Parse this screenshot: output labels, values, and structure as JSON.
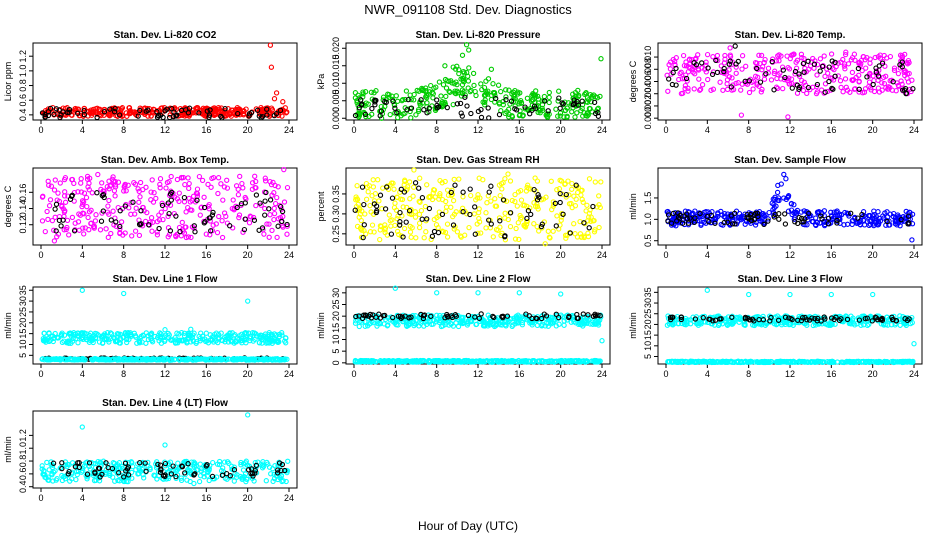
{
  "page": {
    "title": "NWR_091108  Std. Dev. Diagnostics",
    "xlabel": "Hour of Day (UTC)"
  },
  "chart_data": [
    {
      "type": "scatter",
      "title": "Stan. Dev. Li-820 CO2",
      "ylabel": "Licor ppm",
      "xlim": [
        0,
        24
      ],
      "ylim": [
        0.33,
        1.38
      ],
      "xticks": [
        0,
        4,
        8,
        12,
        16,
        20,
        24
      ],
      "yticks": [
        0.4,
        0.6,
        0.8,
        1.0,
        1.2
      ],
      "yticklabels": [
        "0.4",
        "0.6",
        "0.8",
        "1.0",
        "1.2"
      ],
      "series": [
        {
          "color": "#ff0000",
          "values": {
            "band": [
              0.38,
              0.5
            ],
            "spikes": [
              [
                22.2,
                1.35
              ],
              [
                22.3,
                1.05
              ],
              [
                22.6,
                0.62
              ],
              [
                22.8,
                0.7
              ],
              [
                23.4,
                0.58
              ]
            ]
          }
        },
        {
          "color": "#000000",
          "values": {
            "band": [
              0.36,
              0.5
            ]
          }
        }
      ]
    },
    {
      "type": "scatter",
      "title": "Stan. Dev. Li-820 Pressure",
      "ylabel": "kPa",
      "xlim": [
        0,
        24
      ],
      "ylim": [
        -0.0005,
        0.0215
      ],
      "xticks": [
        0,
        4,
        8,
        12,
        16,
        20,
        24
      ],
      "yticks": [
        0.0,
        0.005,
        0.01,
        0.015,
        0.02
      ],
      "yticklabels": [
        "0.000",
        "0.005",
        "0.010",
        "0.015",
        "0.020"
      ],
      "series": [
        {
          "color": "#00cc00",
          "values": {
            "band": [
              0.0,
              0.008
            ],
            "bump": {
              "center": 10.8,
              "width": 2.5,
              "amp": 0.01
            },
            "spikes": [
              [
                10.9,
                0.021
              ],
              [
                11.1,
                0.0195
              ],
              [
                10.5,
                0.018
              ],
              [
                23.9,
                0.017
              ],
              [
                8.8,
                0.015
              ],
              [
                13.3,
                0.014
              ]
            ]
          }
        },
        {
          "color": "#000000",
          "values": {
            "band": [
              0.0,
              0.006
            ]
          }
        }
      ]
    },
    {
      "type": "scatter",
      "title": "Stan. Dev. Li-820 Temp.",
      "ylabel": "degrees C",
      "xlim": [
        0,
        24
      ],
      "ylim": [
        -0.0003,
        0.0123
      ],
      "xticks": [
        0,
        4,
        8,
        12,
        16,
        20,
        24
      ],
      "yticks": [
        0.0,
        0.002,
        0.004,
        0.006,
        0.008,
        0.01
      ],
      "yticklabels": [
        "0.000",
        "0.002",
        "0.004",
        "0.006",
        "0.008",
        "0.010"
      ],
      "series": [
        {
          "color": "#ff00ff",
          "values": {
            "band": [
              0.004,
              0.0105
            ],
            "spikes": [
              [
                6.2,
                0.0115
              ],
              [
                7.3,
                0.0005
              ],
              [
                11.8,
                0.0002
              ],
              [
                17.4,
                0.0108
              ]
            ]
          }
        },
        {
          "color": "#000000",
          "values": {
            "band": [
              0.004,
              0.0095
            ],
            "spikes": [
              [
                6.7,
                0.0118
              ]
            ]
          }
        }
      ]
    },
    {
      "type": "scatter",
      "title": "Stan. Dev. Amb. Box Temp.",
      "ylabel": "degrees C",
      "xlim": [
        0,
        24
      ],
      "ylim": [
        0.095,
        0.19
      ],
      "xticks": [
        0,
        4,
        8,
        12,
        16,
        20,
        24
      ],
      "yticks": [
        0.12,
        0.14,
        0.16
      ],
      "yticklabels": [
        "0.12",
        "0.14",
        "0.16"
      ],
      "series": [
        {
          "color": "#ff00ff",
          "values": {
            "band": [
              0.104,
              0.18
            ],
            "spikes": [
              [
                23.5,
                0.188
              ],
              [
                1.3,
                0.1
              ],
              [
                5.5,
                0.182
              ]
            ]
          }
        },
        {
          "color": "#000000",
          "values": {
            "band": [
              0.11,
              0.16
            ]
          }
        }
      ]
    },
    {
      "type": "scatter",
      "title": "Stan. Dev. Gas Stream RH",
      "ylabel": "percent",
      "xlim": [
        0,
        24
      ],
      "ylim": [
        0.222,
        0.415
      ],
      "xticks": [
        0,
        4,
        8,
        12,
        16,
        20,
        24
      ],
      "yticks": [
        0.25,
        0.3,
        0.35
      ],
      "yticklabels": [
        "0.25",
        "0.30",
        "0.35"
      ],
      "series": [
        {
          "color": "#ffff00",
          "values": {
            "band": [
              0.235,
              0.39
            ],
            "spikes": [
              [
                5.8,
                0.41
              ],
              [
                18.5,
                0.225
              ],
              [
                14.9,
                0.4
              ]
            ]
          }
        },
        {
          "color": "#000000",
          "values": {
            "band": [
              0.24,
              0.38
            ]
          }
        }
      ]
    },
    {
      "type": "scatter",
      "title": "Stan. Dev. Sample Flow",
      "ylabel": "ml/min",
      "xlim": [
        0,
        24
      ],
      "ylim": [
        0.4,
        2.2
      ],
      "xticks": [
        0,
        4,
        8,
        12,
        16,
        20,
        24
      ],
      "yticks": [
        0.5,
        1.0,
        1.5
      ],
      "yticklabels": [
        "0.5",
        "1.0",
        "1.5"
      ],
      "series": [
        {
          "color": "#0000ff",
          "values": {
            "band": [
              0.85,
              1.2
            ],
            "bump": {
              "center": 11.3,
              "width": 1.0,
              "amp": 0.85
            },
            "spikes": [
              [
                11.4,
                2.05
              ],
              [
                11.6,
                1.95
              ],
              [
                23.8,
                0.52
              ]
            ]
          }
        },
        {
          "color": "#000000",
          "values": {
            "band": [
              0.88,
              1.15
            ]
          }
        }
      ]
    },
    {
      "type": "scatter",
      "title": "Stan. Dev. Line 1 Flow",
      "ylabel": "ml/min",
      "xlim": [
        0,
        24
      ],
      "ylim": [
        1.0,
        36.5
      ],
      "xticks": [
        0,
        4,
        8,
        12,
        16,
        20,
        24
      ],
      "yticks": [
        5,
        10,
        15,
        20,
        25,
        30,
        35
      ],
      "yticklabels": [
        "5",
        "10",
        "15",
        "20",
        "25",
        "30",
        "35"
      ],
      "series": [
        {
          "color": "#00ffff",
          "values": {
            "band": [
              10.5,
              15.5
            ],
            "spikes": [
              [
                4.0,
                35.0
              ],
              [
                8.0,
                33.5
              ],
              [
                12.0,
                16.8
              ],
              [
                16.0,
                15.2
              ],
              [
                20.0,
                30.0
              ],
              [
                14.5,
                17.0
              ]
            ]
          }
        },
        {
          "color": "#000000",
          "values": {
            "band": [
              3.2,
              3.8
            ]
          }
        },
        {
          "color": "#00ffff",
          "values": {
            "band": [
              2.8,
              3.5
            ]
          }
        }
      ]
    },
    {
      "type": "scatter",
      "title": "Stan. Dev. Line 2 Flow",
      "ylabel": "ml/min",
      "xlim": [
        0,
        24
      ],
      "ylim": [
        -0.5,
        32.5
      ],
      "xticks": [
        0,
        4,
        8,
        12,
        16,
        20,
        24
      ],
      "yticks": [
        0,
        5,
        10,
        15,
        20,
        25,
        30
      ],
      "yticklabels": [
        "0",
        "5",
        "10",
        "15",
        "20",
        "25",
        "30"
      ],
      "series": [
        {
          "color": "#00ffff",
          "values": {
            "band": [
              15.5,
              20.5
            ],
            "spikes": [
              [
                4.0,
                32.0
              ],
              [
                8.0,
                30.0
              ],
              [
                12.0,
                30.0
              ],
              [
                16.0,
                30.0
              ],
              [
                20.0,
                29.5
              ],
              [
                24.0,
                9.5
              ]
            ]
          }
        },
        {
          "color": "#000000",
          "values": {
            "band": [
              19.0,
              21.0
            ]
          }
        },
        {
          "color": "#00ffff",
          "values": {
            "band": [
              0.3,
              1.0
            ]
          }
        }
      ]
    },
    {
      "type": "scatter",
      "title": "Stan. Dev. Line 3 Flow",
      "ylabel": "ml/min",
      "xlim": [
        0,
        24
      ],
      "ylim": [
        1.5,
        37.5
      ],
      "xticks": [
        0,
        4,
        8,
        12,
        16,
        20,
        24
      ],
      "yticks": [
        5,
        10,
        15,
        20,
        25,
        30,
        35
      ],
      "yticklabels": [
        "5",
        "10",
        "15",
        "20",
        "25",
        "30",
        "35"
      ],
      "series": [
        {
          "color": "#00ffff",
          "values": {
            "band": [
              19.5,
              24.0
            ],
            "spikes": [
              [
                4.0,
                36.0
              ],
              [
                8.0,
                34.0
              ],
              [
                12.0,
                34.0
              ],
              [
                16.0,
                34.0
              ],
              [
                20.0,
                34.0
              ],
              [
                24.0,
                11.0
              ]
            ]
          }
        },
        {
          "color": "#000000",
          "values": {
            "band": [
              21.5,
              23.5
            ]
          }
        },
        {
          "color": "#00ffff",
          "values": {
            "band": [
              2.2,
              2.8
            ]
          }
        }
      ]
    },
    {
      "type": "scatter",
      "title": "Stan. Dev. Line 4 (LT) Flow",
      "ylabel": "ml/min",
      "xlim": [
        0,
        24
      ],
      "ylim": [
        0.38,
        1.58
      ],
      "xticks": [
        0,
        4,
        8,
        12,
        16,
        20,
        24
      ],
      "yticks": [
        0.4,
        0.6,
        0.8,
        1.0,
        1.2
      ],
      "yticklabels": [
        "0.4",
        "0.6",
        "0.8",
        "1.0",
        "1.2"
      ],
      "series": [
        {
          "color": "#00ffff",
          "values": {
            "band": [
              0.48,
              0.8
            ],
            "spikes": [
              [
                4.0,
                1.33
              ],
              [
                12.0,
                1.05
              ],
              [
                20.0,
                1.52
              ],
              [
                14.8,
                0.45
              ]
            ]
          }
        },
        {
          "color": "#000000",
          "values": {
            "band": [
              0.55,
              0.78
            ]
          }
        }
      ]
    }
  ]
}
